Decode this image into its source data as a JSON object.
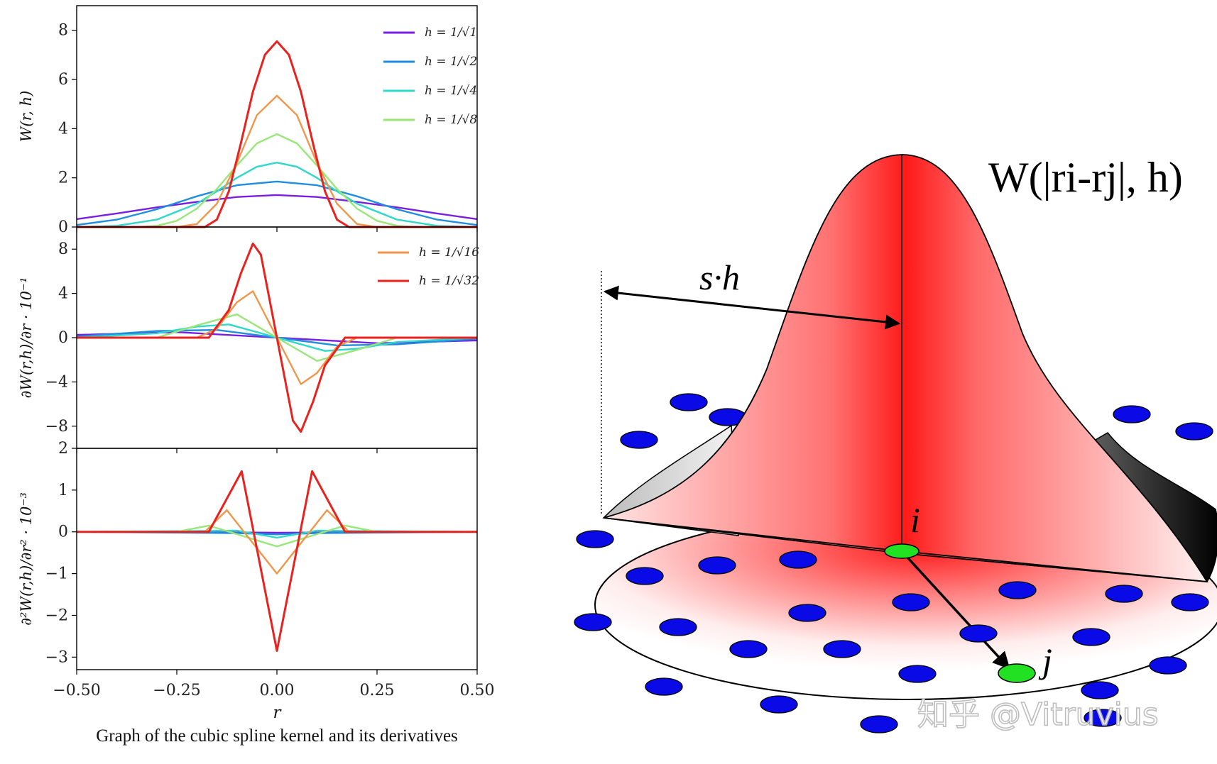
{
  "caption": "Graph of the cubic spline kernel and its derivatives",
  "chart_data": [
    {
      "type": "line",
      "panel": "top",
      "ylabel": "W(r, h)",
      "xlim": [
        -0.5,
        0.5
      ],
      "ylim": [
        0,
        9
      ],
      "yticks": [
        "0",
        "2",
        "4",
        "6",
        "8"
      ],
      "legend": "top-right",
      "grid": false,
      "series": [
        {
          "name": "h = 1/√1",
          "color": "#7a1fe0",
          "x": [
            -0.5,
            -0.4,
            -0.3,
            -0.2,
            -0.1,
            0,
            0.1,
            0.2,
            0.3,
            0.4,
            0.5
          ],
          "y": [
            0.32,
            0.55,
            0.8,
            1.02,
            1.22,
            1.3,
            1.22,
            1.02,
            0.8,
            0.55,
            0.32
          ]
        },
        {
          "name": "h = 1/√2",
          "color": "#1f8ee0",
          "x": [
            -0.5,
            -0.4,
            -0.3,
            -0.2,
            -0.1,
            0,
            0.1,
            0.2,
            0.3,
            0.4,
            0.5
          ],
          "y": [
            0.08,
            0.3,
            0.72,
            1.25,
            1.7,
            1.85,
            1.7,
            1.25,
            0.72,
            0.3,
            0.08
          ]
        },
        {
          "name": "h = 1/√4",
          "color": "#2fd8c8",
          "x": [
            -0.5,
            -0.4,
            -0.3,
            -0.2,
            -0.15,
            -0.1,
            -0.05,
            0,
            0.05,
            0.1,
            0.15,
            0.2,
            0.3,
            0.4,
            0.5
          ],
          "y": [
            0,
            0.05,
            0.3,
            0.95,
            1.45,
            2.0,
            2.45,
            2.62,
            2.45,
            2.0,
            1.45,
            0.95,
            0.3,
            0.05,
            0
          ]
        },
        {
          "name": "h = 1/√8",
          "color": "#9ae67a",
          "x": [
            -0.5,
            -0.35,
            -0.3,
            -0.25,
            -0.2,
            -0.15,
            -0.1,
            -0.05,
            0,
            0.05,
            0.1,
            0.15,
            0.2,
            0.25,
            0.3,
            0.35,
            0.5
          ],
          "y": [
            0,
            0,
            0.05,
            0.25,
            0.75,
            1.55,
            2.5,
            3.4,
            3.78,
            3.4,
            2.5,
            1.55,
            0.75,
            0.25,
            0.05,
            0,
            0
          ]
        },
        {
          "name": "h = 1/√16",
          "color": "#f0964a",
          "x": [
            -0.5,
            -0.25,
            -0.2,
            -0.15,
            -0.1,
            -0.05,
            0,
            0.05,
            0.1,
            0.15,
            0.2,
            0.25,
            0.5
          ],
          "y": [
            0,
            0,
            0.12,
            0.95,
            2.6,
            4.55,
            5.34,
            4.55,
            2.6,
            0.95,
            0.12,
            0,
            0
          ]
        },
        {
          "name": "h = 1/√32",
          "color": "#e8221e",
          "x": [
            -0.5,
            -0.18,
            -0.15,
            -0.12,
            -0.09,
            -0.06,
            -0.03,
            0,
            0.03,
            0.06,
            0.09,
            0.12,
            0.15,
            0.18,
            0.5
          ],
          "y": [
            0,
            0,
            0.3,
            1.45,
            3.4,
            5.5,
            7.0,
            7.55,
            7.0,
            5.5,
            3.4,
            1.45,
            0.3,
            0,
            0
          ]
        }
      ]
    },
    {
      "type": "line",
      "panel": "middle",
      "ylabel": "∂W(r,h)/∂r · 10⁻¹",
      "xlim": [
        -0.5,
        0.5
      ],
      "ylim": [
        -10,
        10
      ],
      "yticks": [
        "−8",
        "−4",
        "0",
        "4",
        "8"
      ],
      "legend": "top-right",
      "grid": false,
      "series": [
        {
          "name": "h = 1/√1",
          "color": "#7a1fe0",
          "x": [
            -0.5,
            -0.25,
            0,
            0.25,
            0.5
          ],
          "y": [
            0.25,
            0.5,
            0,
            -0.5,
            -0.25
          ]
        },
        {
          "name": "h = 1/√2",
          "color": "#1f8ee0",
          "x": [
            -0.5,
            -0.3,
            -0.15,
            0,
            0.15,
            0.3,
            0.5
          ],
          "y": [
            0.1,
            0.6,
            0.7,
            0,
            -0.7,
            -0.6,
            -0.1
          ]
        },
        {
          "name": "h = 1/√4",
          "color": "#2fd8c8",
          "x": [
            -0.5,
            -0.3,
            -0.2,
            -0.12,
            0,
            0.12,
            0.2,
            0.3,
            0.5
          ],
          "y": [
            0,
            0.4,
            1.0,
            1.2,
            0,
            -1.2,
            -1.0,
            -0.4,
            0
          ]
        },
        {
          "name": "h = 1/√8",
          "color": "#9ae67a",
          "x": [
            -0.5,
            -0.3,
            -0.2,
            -0.1,
            0,
            0.1,
            0.2,
            0.3,
            0.5
          ],
          "y": [
            0,
            0,
            1.1,
            2.1,
            0,
            -2.1,
            -1.1,
            0,
            0
          ]
        },
        {
          "name": "h = 1/√16",
          "color": "#f0964a",
          "x": [
            -0.5,
            -0.2,
            -0.15,
            -0.1,
            -0.06,
            0,
            0.06,
            0.1,
            0.15,
            0.2,
            0.5
          ],
          "y": [
            0,
            0,
            0.8,
            3.2,
            4.2,
            0,
            -4.2,
            -3.2,
            -0.8,
            0,
            0
          ]
        },
        {
          "name": "h = 1/√32",
          "color": "#e8221e",
          "x": [
            -0.5,
            -0.17,
            -0.12,
            -0.09,
            -0.06,
            -0.04,
            0,
            0.04,
            0.06,
            0.09,
            0.12,
            0.17,
            0.5
          ],
          "y": [
            0,
            0,
            2.5,
            5.8,
            8.5,
            7.5,
            0,
            -7.5,
            -8.5,
            -5.8,
            -2.5,
            0,
            0
          ]
        }
      ]
    },
    {
      "type": "line",
      "panel": "bottom",
      "ylabel": "∂²W(r,h)/∂r² · 10⁻³",
      "xlabel": "r",
      "xlim": [
        -0.5,
        0.5
      ],
      "ylim": [
        -3.3,
        2.0
      ],
      "xticks": [
        "−0.50",
        "−0.25",
        "0.00",
        "0.25",
        "0.50"
      ],
      "yticks": [
        "−3",
        "−2",
        "−1",
        "0",
        "1",
        "2"
      ],
      "grid": false,
      "series": [
        {
          "name": "h = 1/√1",
          "color": "#7a1fe0",
          "x": [
            -0.5,
            0,
            0.5
          ],
          "y": [
            0,
            -0.02,
            0
          ]
        },
        {
          "name": "h = 1/√2",
          "color": "#1f8ee0",
          "x": [
            -0.5,
            -0.1,
            0,
            0.1,
            0.5
          ],
          "y": [
            0,
            -0.03,
            -0.06,
            -0.03,
            0
          ]
        },
        {
          "name": "h = 1/√4",
          "color": "#2fd8c8",
          "x": [
            -0.5,
            -0.2,
            -0.1,
            0,
            0.1,
            0.2,
            0.5
          ],
          "y": [
            0,
            0.02,
            0.03,
            -0.14,
            0.03,
            0.02,
            0
          ]
        },
        {
          "name": "h = 1/√8",
          "color": "#9ae67a",
          "x": [
            -0.5,
            -0.25,
            -0.17,
            0,
            0.17,
            0.25,
            0.5
          ],
          "y": [
            0,
            0,
            0.15,
            -0.35,
            0.15,
            0,
            0
          ]
        },
        {
          "name": "h = 1/√16",
          "color": "#f0964a",
          "x": [
            -0.5,
            -0.18,
            -0.125,
            0,
            0.125,
            0.18,
            0.5
          ],
          "y": [
            0,
            0,
            0.52,
            -1.0,
            0.52,
            0,
            0
          ]
        },
        {
          "name": "h = 1/√32",
          "color": "#e8221e",
          "x": [
            -0.5,
            -0.17,
            -0.088,
            0,
            0.088,
            0.17,
            0.5
          ],
          "y": [
            0,
            0,
            1.45,
            -2.85,
            1.45,
            0,
            0
          ]
        }
      ]
    }
  ],
  "diagram": {
    "kernel_label": "W(|ri-rj|, h)",
    "support_label": "s·h",
    "particle_i_label": "i",
    "particle_j_label": "j",
    "particle_color": "#0a0ae6",
    "highlight_color": "#22e022",
    "kernel_color": "#ff1a1a"
  },
  "watermark": "知乎 @Vitruvius"
}
